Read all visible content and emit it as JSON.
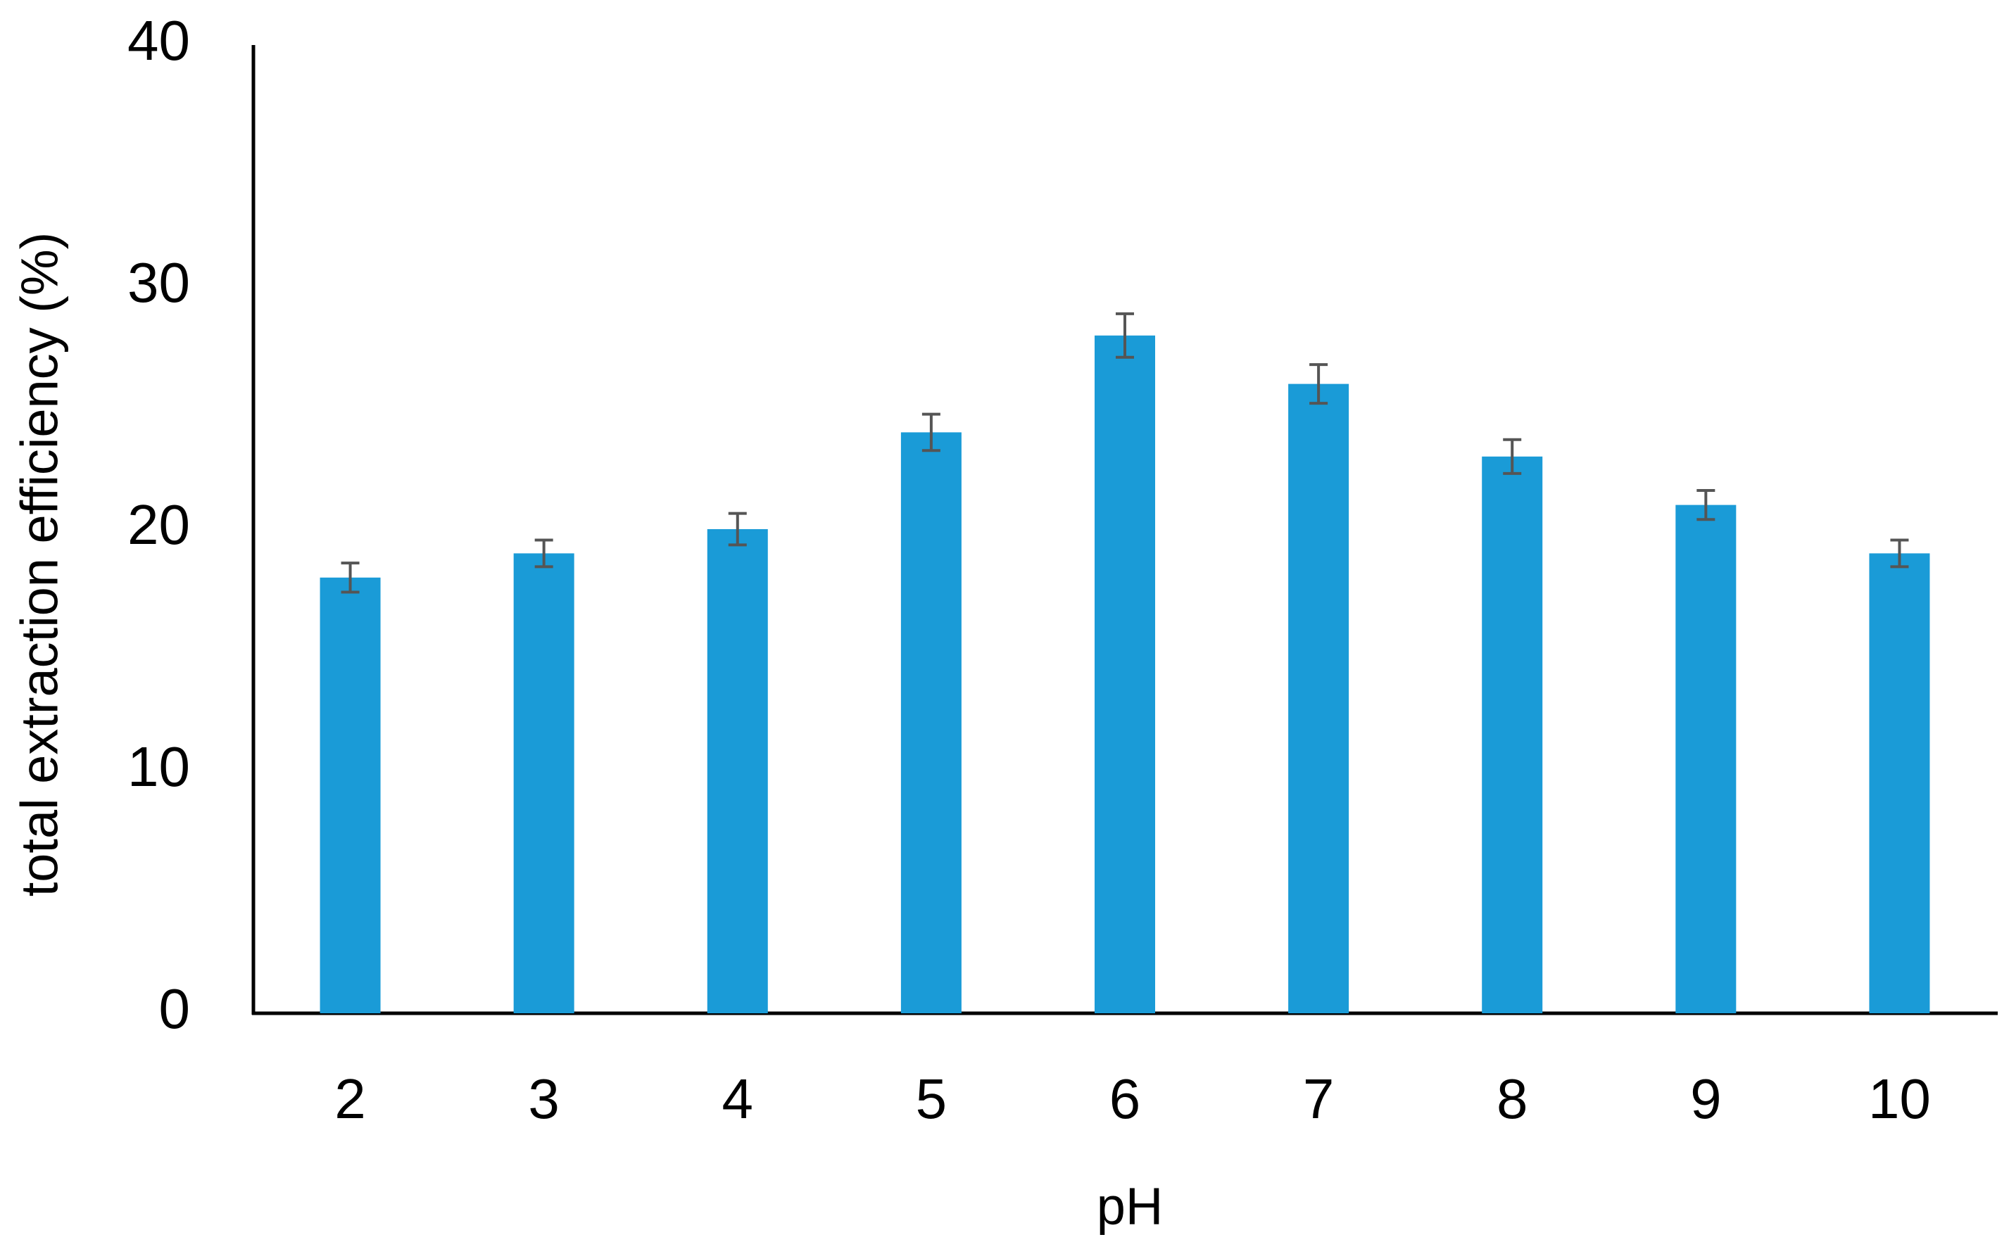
{
  "chart_data": {
    "type": "bar",
    "x_label": "pH",
    "y_label": "total extraction efficiency (%)",
    "categories": [
      "2",
      "3",
      "4",
      "5",
      "6",
      "7",
      "8",
      "9",
      "10"
    ],
    "values": [
      18,
      19,
      20,
      24,
      28,
      26,
      23,
      21,
      19
    ],
    "errors": [
      0.6,
      0.55,
      0.65,
      0.75,
      0.9,
      0.8,
      0.7,
      0.6,
      0.55
    ],
    "color": "#1a9bd7",
    "error_color": "#555555",
    "ylim": [
      0,
      40
    ],
    "yticks": [
      0,
      10,
      20,
      30,
      40
    ],
    "grid": false
  }
}
